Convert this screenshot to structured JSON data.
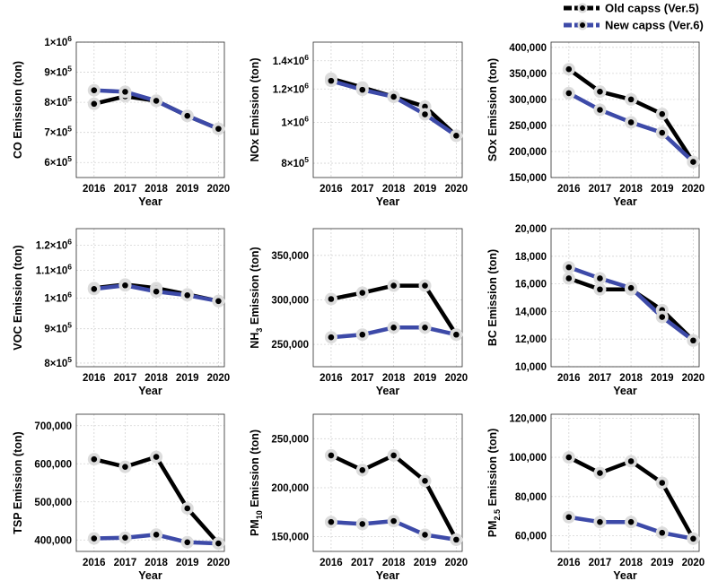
{
  "colors": {
    "old": "#000000",
    "new": "#3d4aa8",
    "marker_halo": "#dcdcdc",
    "marker_dot": "#000000"
  },
  "legend": [
    {
      "key": "old",
      "label": "Old capss (Ver.5)"
    },
    {
      "key": "new",
      "label": "New capss (Ver.6)"
    }
  ],
  "chart_data": [
    {
      "id": "co",
      "type": "line",
      "ylabel": "CO Emission (ton)",
      "xlabel": "Year",
      "categories": [
        "2016",
        "2017",
        "2018",
        "2019",
        "2020"
      ],
      "ylim": [
        550000,
        1000000
      ],
      "ylog": false,
      "yticks": [
        {
          "v": 600000,
          "m": "6",
          "e": "5"
        },
        {
          "v": 700000,
          "m": "7",
          "e": "5"
        },
        {
          "v": 800000,
          "m": "8",
          "e": "5"
        },
        {
          "v": 900000,
          "m": "9",
          "e": "5"
        },
        {
          "v": 1000000,
          "m": "1",
          "e": "6"
        }
      ],
      "series": [
        {
          "key": "old",
          "name": "Old capss (Ver.5)",
          "values": [
            795000,
            820000,
            805000,
            755000,
            712000
          ]
        },
        {
          "key": "new",
          "name": "New capss (Ver.6)",
          "values": [
            840000,
            835000,
            805000,
            755000,
            712000
          ]
        }
      ]
    },
    {
      "id": "nox",
      "type": "line",
      "ylabel": "NOx Emission (ton)",
      "xlabel": "Year",
      "categories": [
        "2016",
        "2017",
        "2018",
        "2019",
        "2020"
      ],
      "ylim": [
        740000,
        1550000
      ],
      "ylog": true,
      "yticks": [
        {
          "v": 800000,
          "m": "8",
          "e": "5"
        },
        {
          "v": 1000000,
          "m": "1",
          "e": "6"
        },
        {
          "v": 1200000,
          "m": "1.2",
          "e": "6"
        },
        {
          "v": 1400000,
          "m": "1.4",
          "e": "6"
        }
      ],
      "series": [
        {
          "key": "old",
          "name": "Old capss (Ver.5)",
          "values": [
            1270000,
            1210000,
            1150000,
            1090000,
            930000
          ]
        },
        {
          "key": "new",
          "name": "New capss (Ver.6)",
          "values": [
            1255000,
            1195000,
            1150000,
            1045000,
            930000
          ]
        }
      ]
    },
    {
      "id": "sox",
      "type": "line",
      "ylabel": "SOx Emission (ton)",
      "xlabel": "Year",
      "categories": [
        "2016",
        "2017",
        "2018",
        "2019",
        "2020"
      ],
      "ylim": [
        150000,
        410000
      ],
      "ylog": false,
      "yticks": [
        {
          "v": 150000,
          "t": "150,000"
        },
        {
          "v": 200000,
          "t": "200,000"
        },
        {
          "v": 250000,
          "t": "250,000"
        },
        {
          "v": 300000,
          "t": "300,000"
        },
        {
          "v": 350000,
          "t": "350,000"
        },
        {
          "v": 400000,
          "t": "400,000"
        }
      ],
      "series": [
        {
          "key": "old",
          "name": "Old capss (Ver.5)",
          "values": [
            358000,
            315000,
            300000,
            272000,
            180000
          ]
        },
        {
          "key": "new",
          "name": "New capss (Ver.6)",
          "values": [
            312000,
            280000,
            256000,
            236000,
            180000
          ]
        }
      ]
    },
    {
      "id": "voc",
      "type": "line",
      "ylabel": "VOC Emission (ton)",
      "xlabel": "Year",
      "categories": [
        "2016",
        "2017",
        "2018",
        "2019",
        "2020"
      ],
      "ylim": [
        790000,
        1270000
      ],
      "ylog": true,
      "yticks": [
        {
          "v": 800000,
          "m": "8",
          "e": "5"
        },
        {
          "v": 900000,
          "m": "9",
          "e": "5"
        },
        {
          "v": 1000000,
          "m": "1",
          "e": "6"
        },
        {
          "v": 1100000,
          "m": "1.1",
          "e": "6"
        },
        {
          "v": 1200000,
          "m": "1.2",
          "e": "6"
        }
      ],
      "series": [
        {
          "key": "old",
          "name": "Old capss (Ver.5)",
          "values": [
            1035000,
            1048000,
            1035000,
            1013000,
            990000
          ]
        },
        {
          "key": "new",
          "name": "New capss (Ver.6)",
          "values": [
            1032000,
            1045000,
            1023000,
            1010000,
            990000
          ]
        }
      ]
    },
    {
      "id": "nh3",
      "type": "line",
      "ylabel": "NH",
      "ylabel_sub": "3",
      "ylabel_tail": " Emission (ton)",
      "xlabel": "Year",
      "categories": [
        "2016",
        "2017",
        "2018",
        "2019",
        "2020"
      ],
      "ylim": [
        225000,
        380000
      ],
      "ylog": false,
      "yticks": [
        {
          "v": 250000,
          "t": "250,000"
        },
        {
          "v": 300000,
          "t": "300,000"
        },
        {
          "v": 350000,
          "t": "350,000"
        }
      ],
      "series": [
        {
          "key": "old",
          "name": "Old capss (Ver.5)",
          "values": [
            301000,
            308000,
            316000,
            316000,
            261000
          ]
        },
        {
          "key": "new",
          "name": "New capss (Ver.6)",
          "values": [
            258000,
            261000,
            269000,
            269000,
            261000
          ]
        }
      ]
    },
    {
      "id": "bc",
      "type": "line",
      "ylabel": "BC Emission (ton)",
      "xlabel": "Year",
      "categories": [
        "2016",
        "2017",
        "2018",
        "2019",
        "2020"
      ],
      "ylim": [
        10000,
        20000
      ],
      "ylog": false,
      "yticks": [
        {
          "v": 10000,
          "t": "10,000"
        },
        {
          "v": 12000,
          "t": "12,000"
        },
        {
          "v": 14000,
          "t": "14,000"
        },
        {
          "v": 16000,
          "t": "16,000"
        },
        {
          "v": 18000,
          "t": "18,000"
        },
        {
          "v": 20000,
          "t": "20,000"
        }
      ],
      "series": [
        {
          "key": "old",
          "name": "Old capss (Ver.5)",
          "values": [
            16400,
            15600,
            15600,
            14100,
            11900
          ]
        },
        {
          "key": "new",
          "name": "New capss (Ver.6)",
          "values": [
            17200,
            16400,
            15700,
            13600,
            11900
          ]
        }
      ]
    },
    {
      "id": "tsp",
      "type": "line",
      "ylabel": "TSP Emission (ton)",
      "xlabel": "Year",
      "categories": [
        "2016",
        "2017",
        "2018",
        "2019",
        "2020"
      ],
      "ylim": [
        370000,
        730000
      ],
      "ylog": false,
      "yticks": [
        {
          "v": 400000,
          "t": "400,000"
        },
        {
          "v": 500000,
          "t": "500,000"
        },
        {
          "v": 600000,
          "t": "600,000"
        },
        {
          "v": 700000,
          "t": "700,000"
        }
      ],
      "series": [
        {
          "key": "old",
          "name": "Old capss (Ver.5)",
          "values": [
            612000,
            592000,
            618000,
            483000,
            391000
          ]
        },
        {
          "key": "new",
          "name": "New capss (Ver.6)",
          "values": [
            404000,
            406000,
            414000,
            394000,
            391000
          ]
        }
      ]
    },
    {
      "id": "pm10",
      "type": "line",
      "ylabel": "PM",
      "ylabel_sub": "10",
      "ylabel_tail": " Emission (ton)",
      "xlabel": "Year",
      "categories": [
        "2016",
        "2017",
        "2018",
        "2019",
        "2020"
      ],
      "ylim": [
        135000,
        275000
      ],
      "ylog": false,
      "yticks": [
        {
          "v": 150000,
          "t": "150,000"
        },
        {
          "v": 200000,
          "t": "200,000"
        },
        {
          "v": 250000,
          "t": "250,000"
        }
      ],
      "series": [
        {
          "key": "old",
          "name": "Old capss (Ver.5)",
          "values": [
            233000,
            218000,
            233000,
            207000,
            147000
          ]
        },
        {
          "key": "new",
          "name": "New capss (Ver.6)",
          "values": [
            165000,
            163000,
            166000,
            152000,
            147000
          ]
        }
      ]
    },
    {
      "id": "pm25",
      "type": "line",
      "ylabel": "PM",
      "ylabel_sub": "2.5",
      "ylabel_tail": " Emission (ton)",
      "xlabel": "Year",
      "categories": [
        "2016",
        "2017",
        "2018",
        "2019",
        "2020"
      ],
      "ylim": [
        52000,
        122000
      ],
      "ylog": false,
      "yticks": [
        {
          "v": 60000,
          "t": "60,000"
        },
        {
          "v": 80000,
          "t": "80,000"
        },
        {
          "v": 100000,
          "t": "100,000"
        },
        {
          "v": 120000,
          "t": "120,000"
        }
      ],
      "series": [
        {
          "key": "old",
          "name": "Old capss (Ver.5)",
          "values": [
            100000,
            92000,
            98000,
            87000,
            58500
          ]
        },
        {
          "key": "new",
          "name": "New capss (Ver.6)",
          "values": [
            69500,
            67000,
            67000,
            61500,
            58500
          ]
        }
      ]
    }
  ]
}
